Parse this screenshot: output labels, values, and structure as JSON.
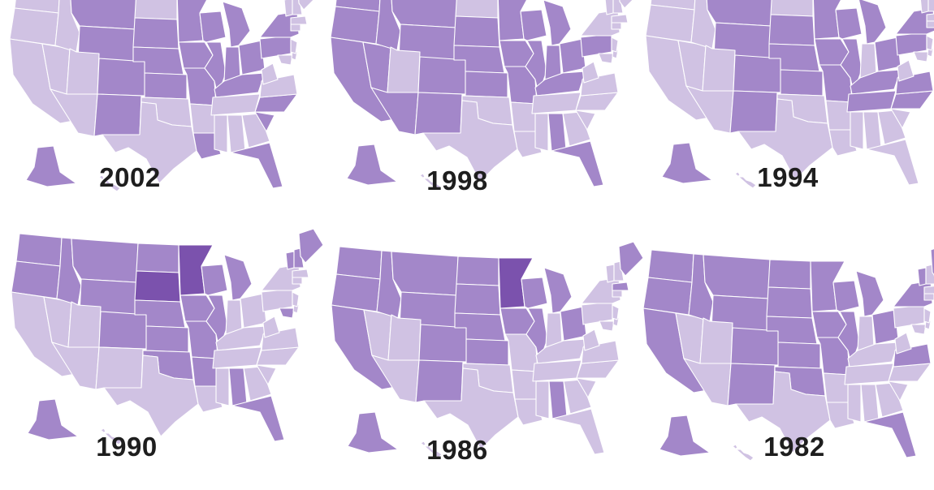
{
  "palette": {
    "light": "#d0c2e3",
    "medium": "#a387c9",
    "dark": "#7b52ad",
    "background": "#ffffff",
    "text": "#1e1e1e"
  },
  "panels": [
    {
      "year": "2002",
      "dark": [],
      "medium": [
        "MT",
        "WY",
        "CO",
        "NE",
        "KS",
        "SD",
        "IA",
        "MN",
        "WI",
        "MI",
        "IL",
        "MO",
        "IN",
        "OH",
        "KY",
        "PA",
        "NY",
        "NC",
        "SC",
        "LA",
        "FL",
        "AK",
        "NM"
      ]
    },
    {
      "year": "1998",
      "dark": [],
      "medium": [
        "WA",
        "OR",
        "NV",
        "CA",
        "AZ",
        "ID",
        "MT",
        "WY",
        "CO",
        "NM",
        "SD",
        "NE",
        "KS",
        "MN",
        "IA",
        "MO",
        "WI",
        "IL",
        "IN",
        "MI",
        "OH",
        "KY",
        "PA",
        "AL",
        "FL",
        "AK"
      ]
    },
    {
      "year": "1994",
      "dark": [],
      "medium": [
        "MT",
        "WY",
        "CO",
        "NM",
        "NE",
        "KS",
        "SD",
        "MN",
        "IA",
        "MO",
        "WI",
        "MI",
        "IL",
        "OH",
        "KY",
        "PA",
        "TN",
        "NC",
        "VA",
        "AK",
        "NY"
      ]
    },
    {
      "year": "1990",
      "dark": [
        "SD",
        "MN"
      ],
      "medium": [
        "WA",
        "OR",
        "ID",
        "MT",
        "WY",
        "CO",
        "KS",
        "OK",
        "NE",
        "ND",
        "IA",
        "MO",
        "AR",
        "WI",
        "MI",
        "IL",
        "AL",
        "FL",
        "ME",
        "AK",
        "VT",
        "NH",
        "MD"
      ]
    },
    {
      "year": "1986",
      "dark": [
        "MN"
      ],
      "medium": [
        "WA",
        "OR",
        "ID",
        "MT",
        "WY",
        "CO",
        "NM",
        "CA",
        "ND",
        "SD",
        "NE",
        "KS",
        "IA",
        "WI",
        "MI",
        "IL",
        "AL",
        "OH",
        "ME",
        "AK",
        "MA"
      ]
    },
    {
      "year": "1982",
      "dark": [],
      "medium": [
        "WA",
        "OR",
        "ID",
        "MT",
        "WY",
        "CO",
        "NM",
        "CA",
        "ND",
        "SD",
        "NE",
        "KS",
        "OK",
        "MN",
        "IA",
        "MO",
        "WI",
        "MI",
        "IL",
        "OH",
        "VA",
        "NY",
        "VT",
        "ME",
        "FL",
        "AK"
      ]
    }
  ]
}
